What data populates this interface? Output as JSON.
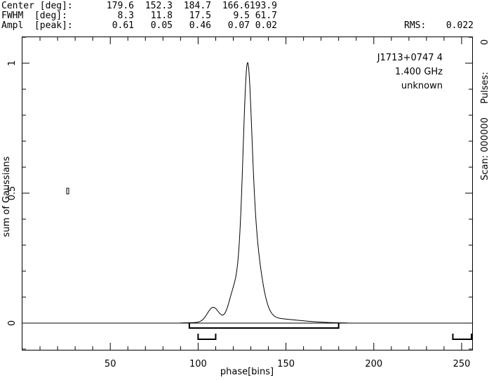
{
  "header": {
    "rows": [
      {
        "label": "Center [deg]:",
        "values": [
          "179.6",
          "152.3",
          "184.7",
          "166.6",
          "193.9"
        ]
      },
      {
        "label": "FWHM  [deg]:",
        "values": [
          "8.3",
          "11.8",
          "17.5",
          "9.5",
          "61.7"
        ]
      },
      {
        "label": "Ampl  [peak]:",
        "values": [
          "0.61",
          "0.05",
          "0.46",
          "0.07",
          "0.02"
        ]
      }
    ],
    "rms_label": "RMS:",
    "rms_value": "0.022"
  },
  "right_axis": {
    "pulses_label": "Pulses:",
    "pulses_value": "0",
    "scan_label": "Scan: 000000"
  },
  "info": {
    "source": "J1713+0747 4",
    "frequency": "1.400 GHz",
    "note": "unknown"
  },
  "chart_data": {
    "type": "line",
    "xlabel": "phase[bins]",
    "ylabel": "sum of Gaussians",
    "xlim": [
      0,
      256
    ],
    "ylim": [
      -0.1,
      1.1
    ],
    "xticks": [
      50,
      100,
      150,
      200,
      250
    ],
    "xtick_labels": [
      "50",
      "100",
      "150",
      "200",
      "250"
    ],
    "yticks": [
      0,
      0.5,
      1
    ],
    "ytick_labels": [
      "0",
      "0.5",
      "1"
    ],
    "components": [
      {
        "center_deg": 179.6,
        "fwhm_deg": 8.3,
        "ampl": 0.61
      },
      {
        "center_deg": 152.3,
        "fwhm_deg": 11.8,
        "ampl": 0.05
      },
      {
        "center_deg": 184.7,
        "fwhm_deg": 17.5,
        "ampl": 0.46
      },
      {
        "center_deg": 166.6,
        "fwhm_deg": 9.5,
        "ampl": 0.07
      },
      {
        "center_deg": 193.9,
        "fwhm_deg": 61.7,
        "ampl": 0.02
      }
    ],
    "peak": {
      "x": 128,
      "y": 1.0
    },
    "brackets": [
      {
        "x0": 95,
        "x1": 180,
        "level": "upper"
      },
      {
        "x0": 100,
        "x1": 110,
        "level": "lower"
      },
      {
        "x0": 245,
        "x1": 256,
        "level": "lower"
      }
    ],
    "grid": false,
    "legend": "none"
  }
}
